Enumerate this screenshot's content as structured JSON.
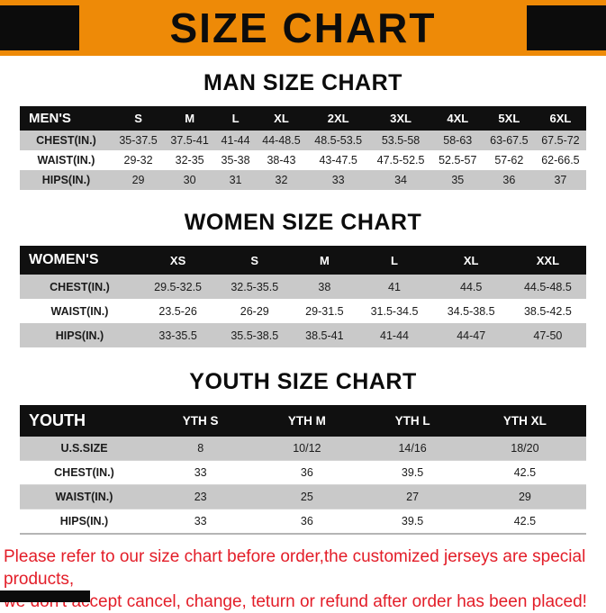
{
  "banner": {
    "title": "SIZE CHART"
  },
  "colors": {
    "banner_orange": "#EE8A07",
    "table_header_black": "#101010",
    "row_gray": "#C9C9C9",
    "row_white": "#FFFFFF",
    "disclaimer_red": "#E31D28"
  },
  "tables": [
    {
      "section_title": "MAN SIZE CHART",
      "header": [
        "MEN'S",
        "S",
        "M",
        "L",
        "XL",
        "2XL",
        "3XL",
        "4XL",
        "5XL",
        "6XL"
      ],
      "rows": [
        [
          "CHEST(IN.)",
          "35-37.5",
          "37.5-41",
          "41-44",
          "44-48.5",
          "48.5-53.5",
          "53.5-58",
          "58-63",
          "63-67.5",
          "67.5-72"
        ],
        [
          "WAIST(IN.)",
          "29-32",
          "32-35",
          "35-38",
          "38-43",
          "43-47.5",
          "47.5-52.5",
          "52.5-57",
          "57-62",
          "62-66.5"
        ],
        [
          "HIPS(IN.)",
          "29",
          "30",
          "31",
          "32",
          "33",
          "34",
          "35",
          "36",
          "37"
        ]
      ]
    },
    {
      "section_title": "WOMEN SIZE CHART",
      "header": [
        "WOMEN'S",
        "XS",
        "S",
        "M",
        "L",
        "XL",
        "XXL"
      ],
      "rows": [
        [
          "CHEST(IN.)",
          "29.5-32.5",
          "32.5-35.5",
          "38",
          "41",
          "44.5",
          "44.5-48.5"
        ],
        [
          "WAIST(IN.)",
          "23.5-26",
          "26-29",
          "29-31.5",
          "31.5-34.5",
          "34.5-38.5",
          "38.5-42.5"
        ],
        [
          "HIPS(IN.)",
          "33-35.5",
          "35.5-38.5",
          "38.5-41",
          "41-44",
          "44-47",
          "47-50"
        ]
      ]
    },
    {
      "section_title": "YOUTH SIZE CHART",
      "header": [
        "YOUTH",
        "YTH S",
        "YTH M",
        "YTH L",
        "YTH XL"
      ],
      "rows": [
        [
          "U.S.SIZE",
          "8",
          "10/12",
          "14/16",
          "18/20"
        ],
        [
          "CHEST(IN.)",
          "33",
          "36",
          "39.5",
          "42.5"
        ],
        [
          "WAIST(IN.)",
          "23",
          "25",
          "27",
          "29"
        ],
        [
          "HIPS(IN.)",
          "33",
          "36",
          "39.5",
          "42.5"
        ]
      ]
    }
  ],
  "disclaimer": {
    "line1": "Please refer to our size chart before order,the customized jerseys are special products,",
    "line2": "we don't accept cancel, change, teturn or refund after order has been placed!"
  }
}
